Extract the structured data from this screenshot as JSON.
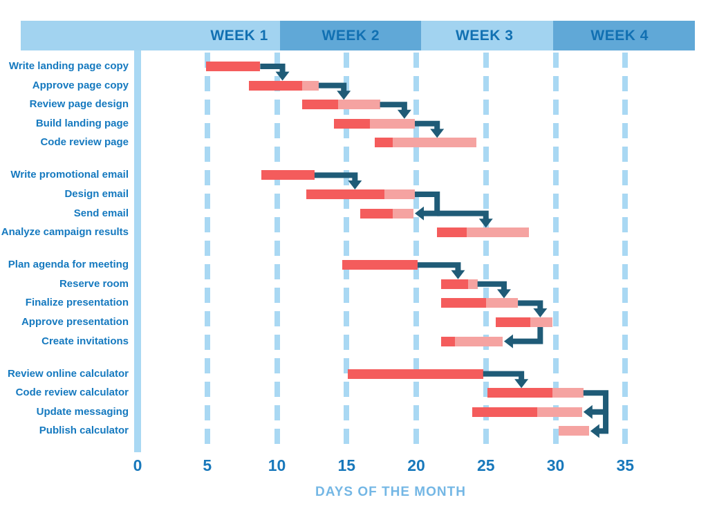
{
  "colors": {
    "background": "#ffffff",
    "band_light": "#a2d3f0",
    "band_dark": "#60a8d7",
    "grid": "#a9d8f3",
    "label_text": "#1579bf",
    "week_text": "#1170b2",
    "tick_text": "#1878bb",
    "axis_title": "#74b7e5",
    "bar_solid": "#f45c5c",
    "bar_light": "#f5a3a1",
    "arrow": "#1f5b77"
  },
  "chart_data": {
    "type": "bar",
    "variant": "gantt",
    "title": "",
    "xlabel": "DAYS OF THE MONTH",
    "ylabel": "",
    "xlim": [
      0,
      38
    ],
    "x_ticks": [
      0,
      5,
      10,
      15,
      20,
      25,
      30,
      35
    ],
    "grid": "dashed-vertical",
    "weeks": [
      {
        "label": "WEEK 1",
        "start_day": 0,
        "end_day": 10.2,
        "shade": "light",
        "label_center_day": 7.3
      },
      {
        "label": "WEEK 2",
        "start_day": 10.2,
        "end_day": 20.35,
        "shade": "dark",
        "label_center_day": 15.3
      },
      {
        "label": "WEEK 3",
        "start_day": 20.35,
        "end_day": 29.85,
        "shade": "light",
        "label_center_day": 24.9
      },
      {
        "label": "WEEK 4",
        "start_day": 29.85,
        "end_day": 40,
        "shade": "dark",
        "label_center_day": 34.6
      }
    ],
    "groups": [
      {
        "tasks": [
          {
            "label": "Write landing page copy",
            "start": 4.9,
            "end": 8.8,
            "solid_until": 8.8
          },
          {
            "label": "Approve page copy",
            "start": 8.0,
            "end": 13.0,
            "solid_until": 11.8
          },
          {
            "label": "Review page design",
            "start": 11.8,
            "end": 17.4,
            "solid_until": 14.4
          },
          {
            "label": "Build landing page",
            "start": 14.1,
            "end": 19.9,
            "solid_until": 16.7
          },
          {
            "label": "Code review page",
            "start": 17.0,
            "end": 24.3,
            "solid_until": 18.3
          }
        ]
      },
      {
        "tasks": [
          {
            "label": "Write promotional email",
            "start": 8.9,
            "end": 12.7,
            "solid_until": 12.7
          },
          {
            "label": "Design email",
            "start": 12.1,
            "end": 19.9,
            "solid_until": 17.7
          },
          {
            "label": "Send email",
            "start": 16.0,
            "end": 19.8,
            "solid_until": 18.3
          },
          {
            "label": "Analyze campaign results",
            "start": 21.5,
            "end": 28.1,
            "solid_until": 23.6
          }
        ]
      },
      {
        "tasks": [
          {
            "label": "Plan agenda for meeting",
            "start": 14.7,
            "end": 20.1,
            "solid_until": 20.1
          },
          {
            "label": "Reserve room",
            "start": 21.8,
            "end": 24.4,
            "solid_until": 23.7
          },
          {
            "label": "Finalize presentation",
            "start": 21.8,
            "end": 27.3,
            "solid_until": 25.0
          },
          {
            "label": "Approve presentation",
            "start": 25.7,
            "end": 29.8,
            "solid_until": 28.2
          },
          {
            "label": "Create invitations",
            "start": 21.8,
            "end": 26.2,
            "solid_until": 22.8
          }
        ]
      },
      {
        "tasks": [
          {
            "label": "Review online calculator",
            "start": 15.1,
            "end": 24.8,
            "solid_until": 24.8
          },
          {
            "label": "Code review calculator",
            "start": 25.1,
            "end": 32.0,
            "solid_until": 29.8
          },
          {
            "label": "Update messaging",
            "start": 24.0,
            "end": 31.9,
            "solid_until": 28.7
          },
          {
            "label": "Publish calculator",
            "start": 30.2,
            "end": 32.4,
            "solid_until": 30.2
          }
        ]
      }
    ],
    "connectors": [
      {
        "pts": [
          [
            8.8,
            0,
            "mid"
          ],
          [
            10.4,
            0,
            "mid"
          ],
          [
            10.4,
            1,
            "top"
          ]
        ],
        "arrow": "down"
      },
      {
        "pts": [
          [
            13.0,
            1,
            "mid"
          ],
          [
            14.8,
            1,
            "mid"
          ],
          [
            14.8,
            2,
            "top"
          ]
        ],
        "arrow": "down"
      },
      {
        "pts": [
          [
            17.4,
            2,
            "mid"
          ],
          [
            19.15,
            2,
            "mid"
          ],
          [
            19.15,
            3,
            "top"
          ]
        ],
        "arrow": "down"
      },
      {
        "pts": [
          [
            19.9,
            3,
            "mid"
          ],
          [
            21.5,
            3,
            "mid"
          ],
          [
            21.5,
            4,
            "top"
          ]
        ],
        "arrow": "down"
      },
      {
        "pts": [
          [
            12.7,
            5,
            "mid"
          ],
          [
            15.6,
            5,
            "mid"
          ],
          [
            15.6,
            6,
            "top"
          ]
        ],
        "arrow": "down"
      },
      {
        "pts": [
          [
            19.9,
            6,
            "mid"
          ],
          [
            21.5,
            6,
            "mid"
          ],
          [
            21.5,
            7,
            "mid"
          ],
          [
            19.9,
            7,
            "mid"
          ]
        ],
        "arrow": "left"
      },
      {
        "pts": [
          [
            21.5,
            7,
            "mid"
          ],
          [
            25.0,
            7,
            "mid"
          ],
          [
            25.0,
            8,
            "top"
          ]
        ],
        "arrow": "down"
      },
      {
        "pts": [
          [
            20.1,
            9,
            "mid"
          ],
          [
            23.0,
            9,
            "mid"
          ],
          [
            23.0,
            10,
            "top"
          ]
        ],
        "arrow": "down"
      },
      {
        "pts": [
          [
            24.4,
            10,
            "mid"
          ],
          [
            26.3,
            10,
            "mid"
          ],
          [
            26.3,
            11,
            "top"
          ]
        ],
        "arrow": "down"
      },
      {
        "pts": [
          [
            27.3,
            11,
            "mid"
          ],
          [
            28.9,
            11,
            "mid"
          ],
          [
            28.9,
            12,
            "top"
          ]
        ],
        "arrow": "down"
      },
      {
        "pts": [
          [
            28.9,
            12,
            "bottom"
          ],
          [
            28.9,
            13,
            "mid"
          ],
          [
            26.3,
            13,
            "mid"
          ]
        ],
        "arrow": "left"
      },
      {
        "pts": [
          [
            24.8,
            14,
            "mid"
          ],
          [
            27.55,
            14,
            "mid"
          ],
          [
            27.55,
            15,
            "top"
          ]
        ],
        "arrow": "down"
      },
      {
        "pts": [
          [
            32.0,
            15,
            "mid"
          ],
          [
            33.6,
            15,
            "mid"
          ],
          [
            33.6,
            16,
            "mid"
          ],
          [
            32.0,
            16,
            "mid"
          ]
        ],
        "arrow": "left"
      },
      {
        "pts": [
          [
            33.6,
            16,
            "mid"
          ],
          [
            33.6,
            17,
            "mid"
          ],
          [
            32.5,
            17,
            "mid"
          ]
        ],
        "arrow": "left"
      }
    ]
  }
}
